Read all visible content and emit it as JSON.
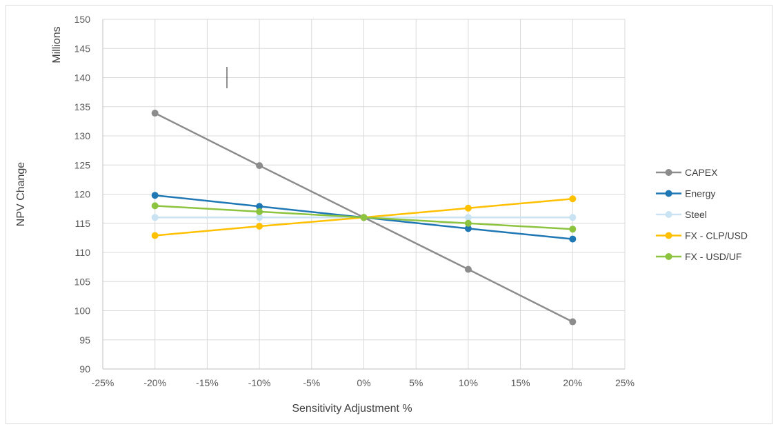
{
  "chart_data": {
    "type": "line",
    "title": "",
    "xlabel": "Sensitivity Adjustment %",
    "ylabel": "NPV Change",
    "yunit": "Millions",
    "xlim": [
      -25,
      25
    ],
    "ylim": [
      90,
      150
    ],
    "xticks": [
      -25,
      -20,
      -15,
      -10,
      -5,
      0,
      5,
      10,
      15,
      20,
      25
    ],
    "xtick_labels": [
      "-25%",
      "-20%",
      "-15%",
      "-10%",
      "-5%",
      "0%",
      "5%",
      "10%",
      "15%",
      "20%",
      "25%"
    ],
    "yticks": [
      90,
      95,
      100,
      105,
      110,
      115,
      120,
      125,
      130,
      135,
      140,
      145,
      150
    ],
    "ytick_labels": [
      "90",
      "95",
      "100",
      "105",
      "110",
      "115",
      "120",
      "125",
      "130",
      "135",
      "140",
      "145",
      "150"
    ],
    "grid": true,
    "legend_position": "right",
    "x": [
      -20,
      -10,
      0,
      10,
      20
    ],
    "series": [
      {
        "name": "CAPEX",
        "color": "#8c8c8c",
        "values": [
          133.9,
          124.9,
          116.0,
          107.1,
          98.1
        ]
      },
      {
        "name": "Energy",
        "color": "#1f77b4",
        "values": [
          119.8,
          117.9,
          116.0,
          114.1,
          112.3
        ]
      },
      {
        "name": "Steel",
        "color": "#c9e3f2",
        "values": [
          116.0,
          116.0,
          116.0,
          116.0,
          116.0
        ]
      },
      {
        "name": "FX - CLP/USD",
        "color": "#ffc000",
        "values": [
          112.9,
          114.5,
          116.0,
          117.6,
          119.2
        ]
      },
      {
        "name": "FX - USD/UF",
        "color": "#8cc43f",
        "values": [
          118.0,
          117.0,
          116.0,
          115.0,
          114.0
        ]
      }
    ]
  }
}
